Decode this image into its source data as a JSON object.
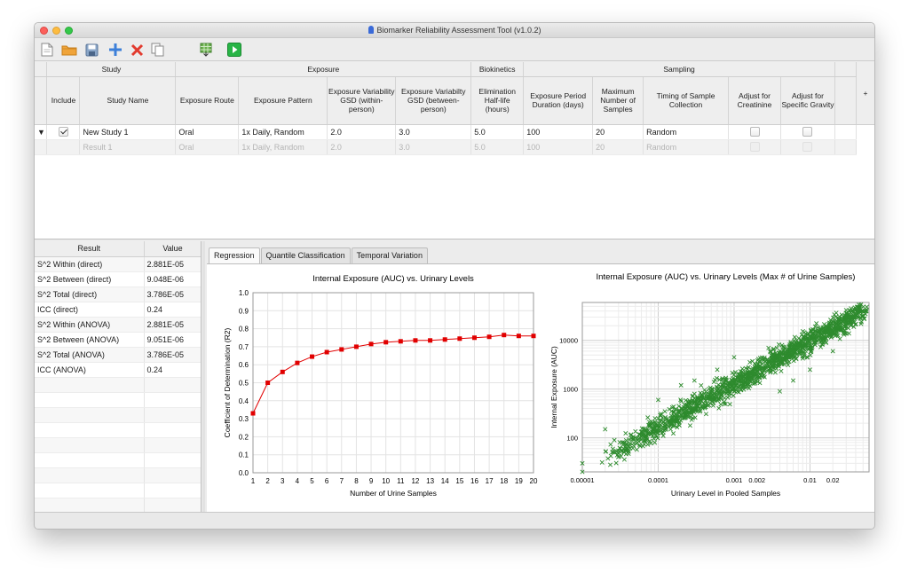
{
  "window": {
    "title": "Biomarker Reliability Assessment Tool (v1.0.2)"
  },
  "toolbar": {
    "buttons": [
      "new-file",
      "open-folder",
      "save",
      "add",
      "delete",
      "copy",
      "export",
      "run"
    ]
  },
  "grid": {
    "groups": [
      "Study",
      "Exposure",
      "Biokinetics",
      "Sampling"
    ],
    "columns": [
      "Include",
      "Study Name",
      "Exposure Route",
      "Exposure Pattern",
      "Exposure Variability GSD (within-person)",
      "Exposure Variabilty GSD (between-person)",
      "Elimination Half-life (hours)",
      "Exposure Period Duration (days)",
      "Maximum Number of Samples",
      "Timing of Sample Collection",
      "Adjust for Creatinine",
      "Adjust for Specific Gravity"
    ],
    "add_column": "+",
    "rows": [
      {
        "include": true,
        "name": "New Study 1",
        "route": "Oral",
        "pattern": "1x Daily, Random",
        "gsd_within": "2.0",
        "gsd_between": "3.0",
        "half_life": "5.0",
        "duration": "100",
        "max_samples": "20",
        "timing": "Random",
        "creatinine": false,
        "gravity": false
      },
      {
        "name": "Result 1",
        "route": "Oral",
        "pattern": "1x Daily, Random",
        "gsd_within": "2.0",
        "gsd_between": "3.0",
        "half_life": "5.0",
        "duration": "100",
        "max_samples": "20",
        "timing": "Random"
      }
    ]
  },
  "results": {
    "headers": [
      "Result",
      "Value"
    ],
    "rows": [
      {
        "label": "S^2 Within (direct)",
        "value": "2.881E-05"
      },
      {
        "label": "S^2 Between (direct)",
        "value": "9.048E-06"
      },
      {
        "label": "S^2 Total (direct)",
        "value": "3.786E-05"
      },
      {
        "label": "ICC (direct)",
        "value": "0.24"
      },
      {
        "label": "S^2 Within (ANOVA)",
        "value": "2.881E-05"
      },
      {
        "label": "S^2 Between (ANOVA)",
        "value": "9.051E-06"
      },
      {
        "label": "S^2 Total (ANOVA)",
        "value": "3.786E-05"
      },
      {
        "label": "ICC (ANOVA)",
        "value": "0.24"
      }
    ]
  },
  "tabs": [
    "Regression",
    "Quantile Classification",
    "Temporal Variation"
  ],
  "colors": {
    "series_red": "#e10000",
    "series_green": "#2e8b2e",
    "accent_green": "#28b446"
  },
  "chart_data": [
    {
      "type": "line",
      "title": "Internal Exposure (AUC) vs. Urinary Levels",
      "xlabel": "Number of Urine Samples",
      "ylabel": "Coefficient of Determination (R2)",
      "x": [
        1,
        2,
        3,
        4,
        5,
        6,
        7,
        8,
        9,
        10,
        11,
        12,
        13,
        14,
        15,
        16,
        17,
        18,
        19,
        20
      ],
      "values": [
        0.33,
        0.5,
        0.56,
        0.61,
        0.645,
        0.67,
        0.685,
        0.7,
        0.715,
        0.725,
        0.73,
        0.735,
        0.735,
        0.74,
        0.745,
        0.75,
        0.755,
        0.765,
        0.76,
        0.76
      ],
      "xticks": [
        "1",
        "2",
        "3",
        "4",
        "5",
        "6",
        "7",
        "8",
        "9",
        "10",
        "11",
        "12",
        "13",
        "14",
        "15",
        "16",
        "17",
        "18",
        "19",
        "20"
      ],
      "yticks": [
        "0.0",
        "0.1",
        "0.2",
        "0.3",
        "0.4",
        "0.5",
        "0.6",
        "0.7",
        "0.8",
        "0.9",
        "1.0"
      ],
      "ylim": [
        0,
        1.0
      ],
      "xlim": [
        1,
        20
      ],
      "grid": true,
      "marker": "square"
    },
    {
      "type": "scatter",
      "title": "Internal Exposure (AUC) vs. Urinary Levels (Max # of Urine Samples)",
      "xlabel": "Urinary Level in Pooled Samples",
      "ylabel": "Internal Exposure (AUC)",
      "log_x": true,
      "log_y": true,
      "xticks": [
        "0.00001",
        "0.0001",
        "0.001",
        "0.002",
        "0.01",
        "0.02"
      ],
      "yticks": [
        "100",
        "1000",
        "10000"
      ],
      "xlim": [
        1e-05,
        0.06
      ],
      "ylim": [
        20,
        60000
      ],
      "marker": "x",
      "trend": {
        "x_range": [
          2e-05,
          0.05
        ],
        "y_range": [
          40,
          40000
        ]
      },
      "points": [
        [
          1e-05,
          20
        ],
        [
          1e-05,
          30
        ],
        [
          4e-05,
          60
        ],
        [
          5e-05,
          100
        ],
        [
          7e-05,
          140
        ],
        [
          9e-05,
          80
        ],
        [
          0.0001,
          250
        ],
        [
          0.00012,
          180
        ],
        [
          0.00015,
          350
        ],
        [
          0.0002,
          300
        ],
        [
          0.00025,
          500
        ],
        [
          0.0003,
          420
        ],
        [
          0.0003,
          800
        ],
        [
          0.0004,
          650
        ],
        [
          0.0005,
          900
        ],
        [
          0.0006,
          700
        ],
        [
          0.0007,
          1200
        ],
        [
          0.0008,
          1000
        ],
        [
          0.001,
          1500
        ],
        [
          0.001,
          900
        ],
        [
          0.0012,
          2000
        ],
        [
          0.0015,
          1600
        ],
        [
          0.002,
          2500
        ],
        [
          0.002,
          1800
        ],
        [
          0.0025,
          3000
        ],
        [
          0.003,
          2200
        ],
        [
          0.004,
          4000
        ],
        [
          0.005,
          3500
        ],
        [
          0.006,
          5000
        ],
        [
          0.008,
          6000
        ],
        [
          0.01,
          7000
        ],
        [
          0.012,
          9000
        ],
        [
          0.015,
          11000
        ],
        [
          0.02,
          14000
        ],
        [
          0.03,
          20000
        ],
        [
          0.04,
          30000
        ],
        [
          0.05,
          40000
        ],
        [
          0.0006,
          2500
        ],
        [
          0.0003,
          1500
        ],
        [
          0.004,
          900
        ],
        [
          0.01,
          2500
        ],
        [
          0.0001,
          600
        ],
        [
          2e-05,
          150
        ],
        [
          0.003,
          6000
        ],
        [
          0.02,
          6000
        ],
        [
          0.0002,
          1200
        ],
        [
          0.001,
          4500
        ],
        [
          0.006,
          1500
        ]
      ]
    }
  ]
}
